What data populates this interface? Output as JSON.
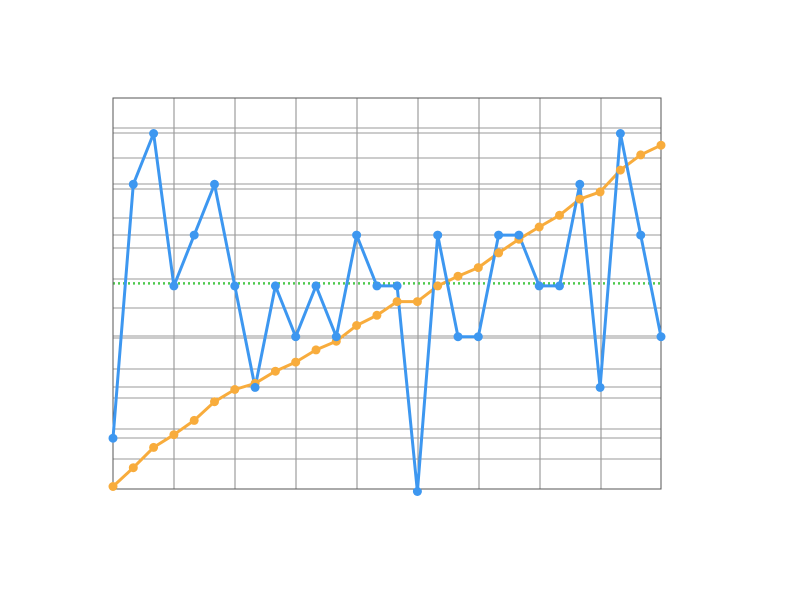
{
  "chart_data": {
    "type": "line",
    "title": "",
    "xlabel": "",
    "ylabel": "",
    "x": [
      0,
      1,
      2,
      3,
      4,
      5,
      6,
      7,
      8,
      9,
      10,
      11,
      12,
      13,
      14,
      15,
      16,
      17,
      18,
      19,
      20,
      21,
      22,
      23,
      24,
      25,
      26,
      27
    ],
    "xlim": [
      0,
      27
    ],
    "ylim": [
      0,
      7.7
    ],
    "grid": true,
    "legend": "none",
    "series": [
      {
        "color": "#3d97f0",
        "marker": "circle",
        "values": [
          1.0,
          6.0,
          7.0,
          4.0,
          5.0,
          6.0,
          4.0,
          2.0,
          4.0,
          3.0,
          4.0,
          3.0,
          5.0,
          4.0,
          4.0,
          -0.05,
          5.0,
          3.0,
          3.0,
          5.0,
          5.0,
          4.0,
          4.0,
          6.0,
          2.0,
          7.0,
          5.0,
          3.0
        ]
      },
      {
        "color": "#f8ac3c",
        "marker": "circle",
        "values": [
          0.05,
          0.42,
          0.82,
          1.07,
          1.35,
          1.72,
          1.96,
          2.08,
          2.32,
          2.5,
          2.74,
          2.91,
          3.22,
          3.42,
          3.69,
          3.69,
          4.0,
          4.19,
          4.36,
          4.65,
          4.92,
          5.16,
          5.39,
          5.71,
          5.85,
          6.28,
          6.58,
          6.77
        ]
      }
    ],
    "reference_lines": [
      {
        "axis": "y",
        "value": 4.05,
        "color": "#4ec94e",
        "style": "dotted"
      }
    ]
  }
}
